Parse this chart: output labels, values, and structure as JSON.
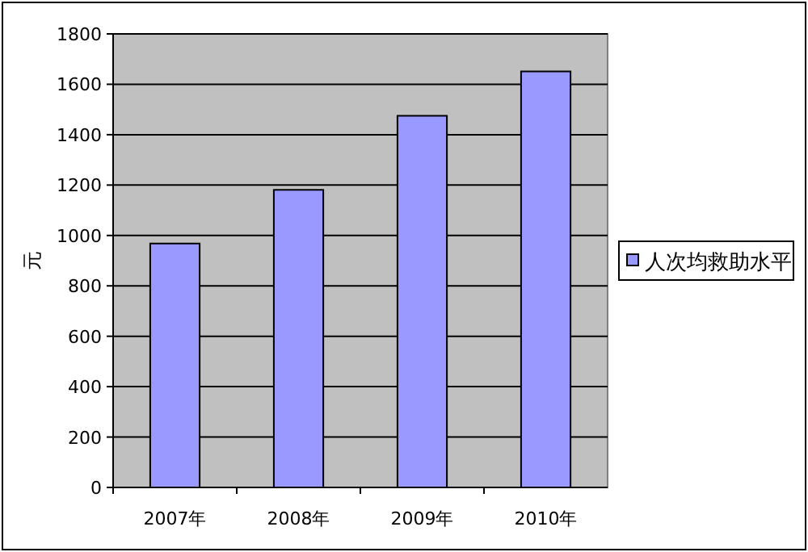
{
  "chart_data": {
    "type": "bar",
    "ylabel": "元",
    "categories": [
      "2007年",
      "2008年",
      "2009年",
      "2010年"
    ],
    "series": [
      {
        "name": "人次均救助水平",
        "color": "#9999ff",
        "values": [
          968,
          1181,
          1475,
          1651
        ]
      }
    ],
    "ylim": [
      0,
      1800
    ],
    "yticks": [
      0,
      200,
      400,
      600,
      800,
      1000,
      1200,
      1400,
      1600,
      1800
    ],
    "grid": "y",
    "legend": "right"
  }
}
